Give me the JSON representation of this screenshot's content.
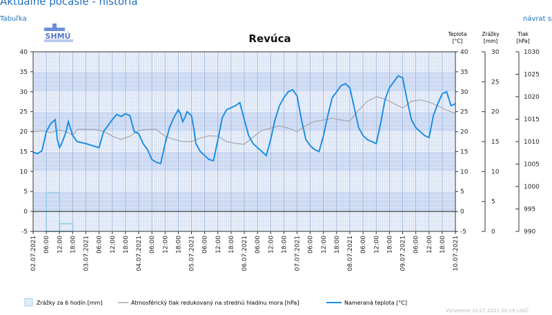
{
  "page": {
    "title": "Aktuálne počasie - história",
    "link_table": "Tabuľka",
    "link_back": "návrat spä"
  },
  "logo_text": "SHMÚ",
  "footer": "Vytvorené 10.07.2021 00:19 LSEČ",
  "chart_data": {
    "type": "line",
    "title": "Revúca",
    "axes": {
      "temperature": {
        "label_line1": "Teplota",
        "label_line2": "[°C]",
        "range": [
          -5,
          40
        ],
        "ticks": [
          40,
          35,
          30,
          25,
          20,
          15,
          10,
          5,
          0,
          -5
        ]
      },
      "precipitation": {
        "label_line1": "Zrážky",
        "label_line2": "[mm]",
        "range": [
          0,
          30
        ],
        "ticks": [
          30,
          25,
          20,
          15,
          10,
          5,
          0
        ]
      },
      "pressure": {
        "label_line1": "Tlak",
        "label_line2": "[hPa]",
        "range": [
          990,
          1030
        ],
        "ticks": [
          1030,
          1025,
          1020,
          1015,
          1010,
          1005,
          1000,
          995,
          990
        ]
      },
      "x": {
        "range_hours": [
          0,
          192
        ],
        "tick_labels": [
          "02.07.2021",
          "06:00",
          "12:00",
          "18:00",
          "03.07.2021",
          "06:00",
          "12:00",
          "18:00",
          "04.07.2021",
          "06:00",
          "12:00",
          "18:00",
          "05.07.2021",
          "06:00",
          "12:00",
          "18:00",
          "06.07.2021",
          "06:00",
          "12:00",
          "18:00",
          "07.07.2021",
          "06:00",
          "12:00",
          "18:00",
          "08.07.2021",
          "06:00",
          "12:00",
          "18:00",
          "09.07.2021",
          "06:00",
          "12:00",
          "18:00",
          "10.07.2021"
        ]
      }
    },
    "grid": true,
    "legend": [
      {
        "label": "Zrážky za 6 hodín [mm]",
        "color": "#9fd0e6",
        "kind": "bar"
      },
      {
        "label": "Atmosférický tlak redukovaný na strednú hladinu mora [hPa]",
        "color": "#a6a6a6",
        "kind": "line"
      },
      {
        "label": "Nameraná teplota [°C]",
        "color": "#1c8ee6",
        "kind": "line"
      }
    ],
    "series": [
      {
        "name": "Nameraná teplota [°C]",
        "axis": "temperature",
        "color": "#1c8ee6",
        "points": [
          [
            0,
            14.8
          ],
          [
            2,
            14.5
          ],
          [
            4,
            15.2
          ],
          [
            6,
            20
          ],
          [
            8,
            22
          ],
          [
            10,
            23
          ],
          [
            11,
            18
          ],
          [
            12,
            16
          ],
          [
            13,
            17
          ],
          [
            15,
            20
          ],
          [
            16,
            22.5
          ],
          [
            18,
            19
          ],
          [
            20,
            17.5
          ],
          [
            24,
            17
          ],
          [
            30,
            16
          ],
          [
            32,
            20
          ],
          [
            36,
            23
          ],
          [
            38,
            24.3
          ],
          [
            40,
            23.8
          ],
          [
            42,
            24.5
          ],
          [
            44,
            24
          ],
          [
            46,
            20
          ],
          [
            48,
            19.5
          ],
          [
            50,
            17
          ],
          [
            52,
            15.5
          ],
          [
            54,
            13
          ],
          [
            56,
            12.3
          ],
          [
            58,
            12
          ],
          [
            60,
            17
          ],
          [
            62,
            21
          ],
          [
            64,
            23.5
          ],
          [
            66,
            25.5
          ],
          [
            67,
            24.5
          ],
          [
            68,
            22.5
          ],
          [
            69,
            23.5
          ],
          [
            70,
            25
          ],
          [
            72,
            24
          ],
          [
            73,
            21
          ],
          [
            74,
            17
          ],
          [
            76,
            15
          ],
          [
            78,
            14
          ],
          [
            80,
            13
          ],
          [
            82,
            12.7
          ],
          [
            84,
            18
          ],
          [
            86,
            23.5
          ],
          [
            88,
            25.5
          ],
          [
            90,
            26
          ],
          [
            92,
            26.5
          ],
          [
            94,
            27.3
          ],
          [
            96,
            23
          ],
          [
            98,
            19
          ],
          [
            100,
            17
          ],
          [
            102,
            16
          ],
          [
            104,
            15
          ],
          [
            106,
            14
          ],
          [
            108,
            18
          ],
          [
            110,
            23
          ],
          [
            112,
            26.5
          ],
          [
            114,
            28.5
          ],
          [
            116,
            30
          ],
          [
            118,
            30.5
          ],
          [
            120,
            29
          ],
          [
            122,
            23
          ],
          [
            124,
            18
          ],
          [
            126,
            16.5
          ],
          [
            128,
            15.5
          ],
          [
            130,
            15
          ],
          [
            132,
            19
          ],
          [
            134,
            24
          ],
          [
            136,
            28.5
          ],
          [
            138,
            30
          ],
          [
            140,
            31.5
          ],
          [
            142,
            32
          ],
          [
            144,
            31
          ],
          [
            146,
            26
          ],
          [
            148,
            21
          ],
          [
            150,
            19
          ],
          [
            152,
            18
          ],
          [
            154,
            17.5
          ],
          [
            156,
            17
          ],
          [
            158,
            22
          ],
          [
            160,
            28
          ],
          [
            162,
            31
          ],
          [
            164,
            32.5
          ],
          [
            166,
            34
          ],
          [
            168,
            33.5
          ],
          [
            170,
            28
          ],
          [
            172,
            23
          ],
          [
            174,
            21
          ],
          [
            176,
            20
          ],
          [
            178,
            19
          ],
          [
            180,
            18.5
          ],
          [
            182,
            24
          ],
          [
            184,
            27
          ],
          [
            186,
            29.5
          ],
          [
            188,
            30
          ],
          [
            190,
            26.5
          ],
          [
            192,
            27
          ]
        ]
      },
      {
        "name": "Atmosférický tlak redukovaný na strednú hladinu mora [hPa]",
        "axis": "pressure",
        "color": "#a6a6a6",
        "points": [
          [
            0,
            1012.2
          ],
          [
            4,
            1012.4
          ],
          [
            8,
            1012
          ],
          [
            12,
            1012.6
          ],
          [
            16,
            1012
          ],
          [
            18,
            1011.4
          ],
          [
            20,
            1012.7
          ],
          [
            24,
            1012.7
          ],
          [
            28,
            1012.7
          ],
          [
            32,
            1012.3
          ],
          [
            36,
            1011.2
          ],
          [
            40,
            1010.5
          ],
          [
            44,
            1011.2
          ],
          [
            48,
            1012.5
          ],
          [
            52,
            1012.7
          ],
          [
            56,
            1012.7
          ],
          [
            60,
            1011.2
          ],
          [
            64,
            1010.5
          ],
          [
            68,
            1010
          ],
          [
            72,
            1010
          ],
          [
            76,
            1010.8
          ],
          [
            80,
            1011.3
          ],
          [
            84,
            1011.2
          ],
          [
            88,
            1010
          ],
          [
            92,
            1009.6
          ],
          [
            96,
            1009.4
          ],
          [
            100,
            1011
          ],
          [
            104,
            1012.5
          ],
          [
            108,
            1013
          ],
          [
            112,
            1013.5
          ],
          [
            116,
            1013
          ],
          [
            120,
            1012.2
          ],
          [
            124,
            1013.6
          ],
          [
            128,
            1014.5
          ],
          [
            132,
            1014.8
          ],
          [
            136,
            1015.2
          ],
          [
            140,
            1014.8
          ],
          [
            144,
            1014.6
          ],
          [
            148,
            1017
          ],
          [
            152,
            1019
          ],
          [
            156,
            1020
          ],
          [
            160,
            1019.5
          ],
          [
            164,
            1018.5
          ],
          [
            168,
            1017.5
          ],
          [
            172,
            1019
          ],
          [
            176,
            1019.3
          ],
          [
            180,
            1018.8
          ],
          [
            184,
            1018
          ],
          [
            188,
            1017
          ],
          [
            192,
            1016.3
          ]
        ]
      }
    ],
    "bars": [
      {
        "name": "Zrážky za 6 hodín [mm]",
        "axis": "precipitation",
        "color": "#9fd0e6",
        "start_hour": 6,
        "end_hour": 12,
        "value": 6.5
      },
      {
        "name": "Zrážky za 6 hodín [mm]",
        "axis": "precipitation",
        "color": "#9fd0e6",
        "start_hour": 12,
        "end_hour": 18,
        "value": 1.3
      }
    ]
  }
}
